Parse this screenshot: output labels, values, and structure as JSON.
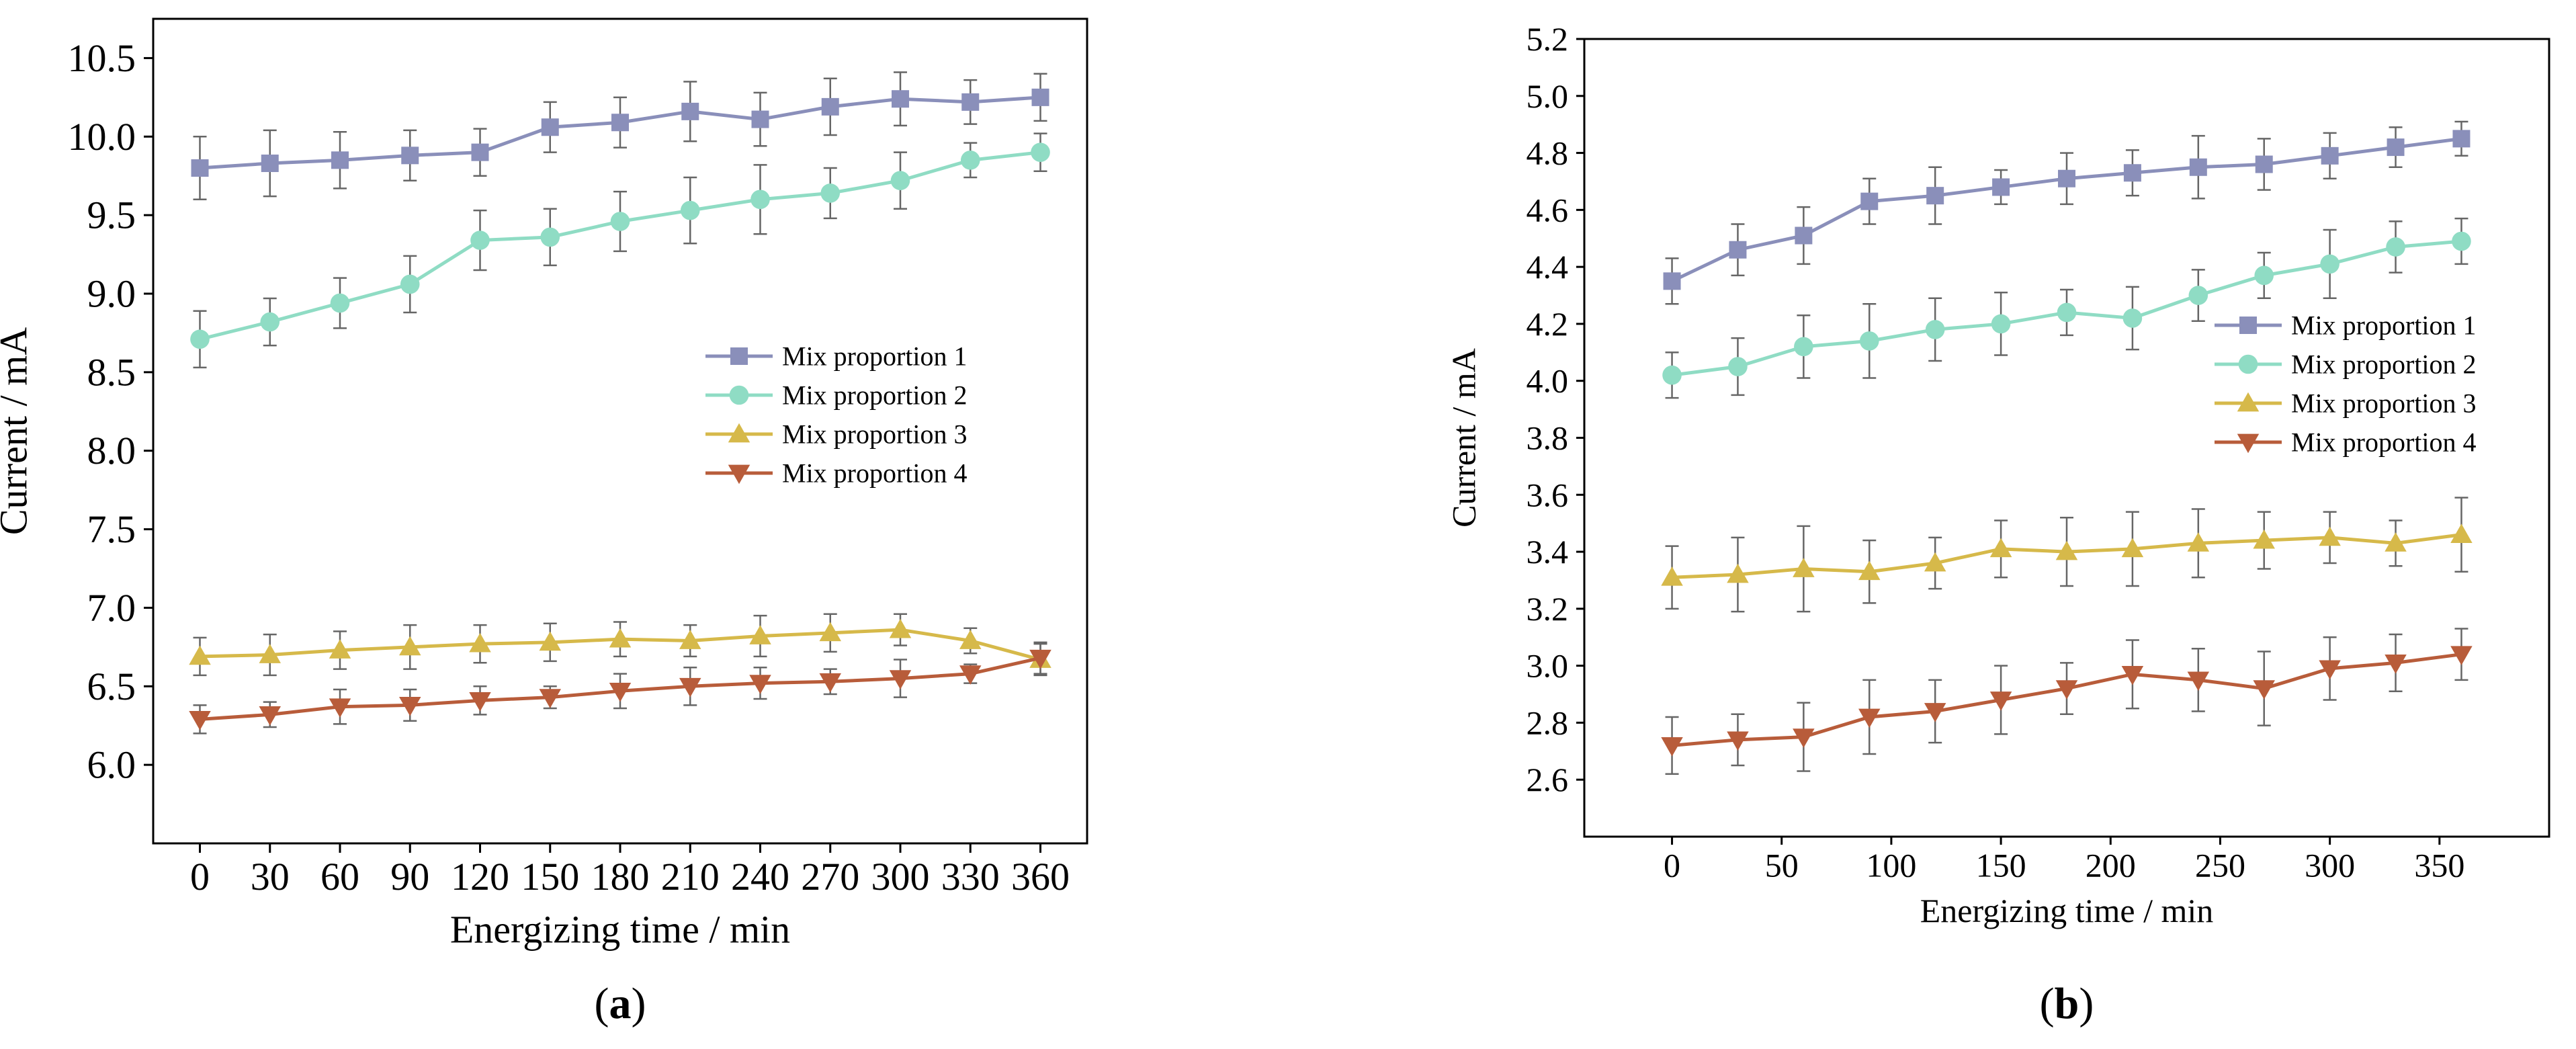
{
  "chart_data": [
    {
      "type": "line",
      "panel_label": "a",
      "xlabel": "Energizing time / min",
      "ylabel": "Current / mA",
      "xlim": [
        -20,
        380
      ],
      "ylim": [
        5.5,
        10.75
      ],
      "yticks": [
        6.0,
        6.5,
        7.0,
        7.5,
        8.0,
        8.5,
        9.0,
        9.5,
        10.0,
        10.5
      ],
      "ytick_labels": [
        "6.0",
        "6.5",
        "7.0",
        "7.5",
        "8.0",
        "8.5",
        "9.0",
        "9.5",
        "10.0",
        "10.5"
      ],
      "xticks": [
        0,
        30,
        60,
        90,
        120,
        150,
        180,
        210,
        240,
        270,
        300,
        330,
        360
      ],
      "xtick_labels": [
        "0",
        "30",
        "60",
        "90",
        "120",
        "150",
        "180",
        "210",
        "240",
        "270",
        "300",
        "330",
        "360"
      ],
      "grid": false,
      "legend_position": "center-right",
      "x": [
        0,
        30,
        60,
        90,
        120,
        150,
        180,
        210,
        240,
        270,
        300,
        330,
        360
      ],
      "series": [
        {
          "name": "Mix proportion 1",
          "color": "#8a8fba",
          "marker": "square",
          "values": [
            9.8,
            9.83,
            9.85,
            9.88,
            9.9,
            10.06,
            10.09,
            10.16,
            10.11,
            10.19,
            10.24,
            10.22,
            10.25
          ],
          "errors": [
            0.2,
            0.21,
            0.18,
            0.16,
            0.15,
            0.16,
            0.16,
            0.19,
            0.17,
            0.18,
            0.17,
            0.14,
            0.15
          ]
        },
        {
          "name": "Mix proportion 2",
          "color": "#8fdcc4",
          "marker": "circle",
          "values": [
            8.71,
            8.82,
            8.94,
            9.06,
            9.34,
            9.36,
            9.46,
            9.53,
            9.6,
            9.64,
            9.72,
            9.85,
            9.9
          ],
          "errors": [
            0.18,
            0.15,
            0.16,
            0.18,
            0.19,
            0.18,
            0.19,
            0.21,
            0.22,
            0.16,
            0.18,
            0.11,
            0.12
          ]
        },
        {
          "name": "Mix proportion 3",
          "color": "#d6b94a",
          "marker": "triangle-up",
          "values": [
            6.69,
            6.7,
            6.73,
            6.75,
            6.77,
            6.78,
            6.8,
            6.79,
            6.82,
            6.84,
            6.86,
            6.79,
            6.67
          ],
          "errors": [
            0.12,
            0.13,
            0.12,
            0.14,
            0.12,
            0.12,
            0.11,
            0.1,
            0.13,
            0.12,
            0.1,
            0.08,
            0.1
          ]
        },
        {
          "name": "Mix proportion 4",
          "color": "#b85c3a",
          "marker": "triangle-down",
          "values": [
            6.29,
            6.32,
            6.37,
            6.38,
            6.41,
            6.43,
            6.47,
            6.5,
            6.52,
            6.53,
            6.55,
            6.58,
            6.68
          ],
          "errors": [
            0.09,
            0.08,
            0.11,
            0.1,
            0.09,
            0.07,
            0.11,
            0.12,
            0.1,
            0.08,
            0.12,
            0.06,
            0.1
          ]
        }
      ]
    },
    {
      "type": "line",
      "panel_label": "b",
      "xlabel": "Energizing time / min",
      "ylabel": "Current / mA",
      "xlim": [
        -40,
        400
      ],
      "ylim": [
        2.4,
        5.2
      ],
      "yticks": [
        2.6,
        2.8,
        3.0,
        3.2,
        3.4,
        3.6,
        3.8,
        4.0,
        4.2,
        4.4,
        4.6,
        4.8,
        5.0,
        5.2
      ],
      "ytick_labels": [
        "2.6",
        "2.8",
        "3.0",
        "3.2",
        "3.4",
        "3.6",
        "3.8",
        "4.0",
        "4.2",
        "4.4",
        "4.6",
        "4.8",
        "5.0",
        "5.2"
      ],
      "xticks": [
        0,
        50,
        100,
        150,
        200,
        250,
        300,
        350
      ],
      "xtick_labels": [
        "0",
        "50",
        "100",
        "150",
        "200",
        "250",
        "300",
        "350"
      ],
      "grid": false,
      "legend_position": "center-right",
      "x": [
        0,
        30,
        60,
        90,
        120,
        150,
        180,
        210,
        240,
        270,
        300,
        330,
        360
      ],
      "series": [
        {
          "name": "Mix proportion 1",
          "color": "#8a8fba",
          "marker": "square",
          "values": [
            4.35,
            4.46,
            4.51,
            4.63,
            4.65,
            4.68,
            4.71,
            4.73,
            4.75,
            4.76,
            4.79,
            4.82,
            4.85
          ],
          "errors": [
            0.08,
            0.09,
            0.1,
            0.08,
            0.1,
            0.06,
            0.09,
            0.08,
            0.11,
            0.09,
            0.08,
            0.07,
            0.06
          ]
        },
        {
          "name": "Mix proportion 2",
          "color": "#8fdcc4",
          "marker": "circle",
          "values": [
            4.02,
            4.05,
            4.12,
            4.14,
            4.18,
            4.2,
            4.24,
            4.22,
            4.3,
            4.37,
            4.41,
            4.47,
            4.49
          ],
          "errors": [
            0.08,
            0.1,
            0.11,
            0.13,
            0.11,
            0.11,
            0.08,
            0.11,
            0.09,
            0.08,
            0.12,
            0.09,
            0.08
          ]
        },
        {
          "name": "Mix proportion 3",
          "color": "#d6b94a",
          "marker": "triangle-up",
          "values": [
            3.31,
            3.32,
            3.34,
            3.33,
            3.36,
            3.41,
            3.4,
            3.41,
            3.43,
            3.44,
            3.45,
            3.43,
            3.46
          ],
          "errors": [
            0.11,
            0.13,
            0.15,
            0.11,
            0.09,
            0.1,
            0.12,
            0.13,
            0.12,
            0.1,
            0.09,
            0.08,
            0.13
          ]
        },
        {
          "name": "Mix proportion 4",
          "color": "#b85c3a",
          "marker": "triangle-down",
          "values": [
            2.72,
            2.74,
            2.75,
            2.82,
            2.84,
            2.88,
            2.92,
            2.97,
            2.95,
            2.92,
            2.99,
            3.01,
            3.04
          ],
          "errors": [
            0.1,
            0.09,
            0.12,
            0.13,
            0.11,
            0.12,
            0.09,
            0.12,
            0.11,
            0.13,
            0.11,
            0.1,
            0.09
          ]
        }
      ]
    }
  ]
}
